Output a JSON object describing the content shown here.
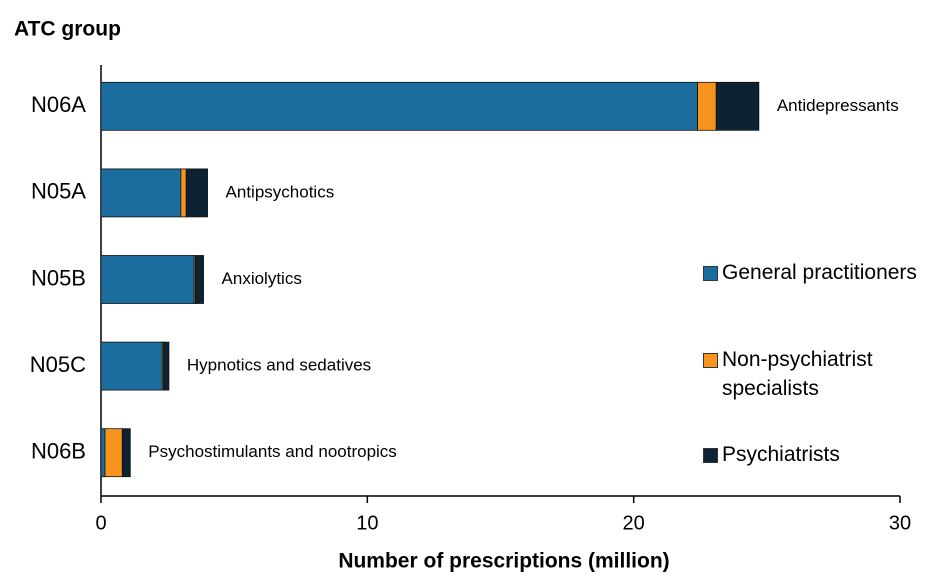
{
  "chart_data": {
    "type": "stacked-bar-horizontal",
    "y_axis_label": "ATC group",
    "x_axis_label": "Number of prescriptions  (million)",
    "categories": [
      "N06A",
      "N05A",
      "N05B",
      "N05C",
      "N06B"
    ],
    "category_annotations": [
      "Antidepressants",
      "Antipsychotics",
      "Anxiolytics",
      "Hypnotics and sedatives",
      "Psychostimulants and nootropics"
    ],
    "series": [
      {
        "name": "General practitioners",
        "color": "#1b6d9d",
        "values": [
          22.4,
          3.0,
          3.5,
          2.3,
          0.15
        ]
      },
      {
        "name": "Non-psychiatrist specialists",
        "color": "#f7941d",
        "values": [
          0.7,
          0.2,
          0.05,
          0.05,
          0.65
        ]
      },
      {
        "name": "Psychiatrists",
        "color": "#0d2232",
        "values": [
          1.6,
          0.8,
          0.3,
          0.2,
          0.3
        ]
      }
    ],
    "xlim": [
      0,
      30
    ],
    "xticks": [
      0,
      10,
      20,
      30
    ],
    "legend": "right"
  }
}
